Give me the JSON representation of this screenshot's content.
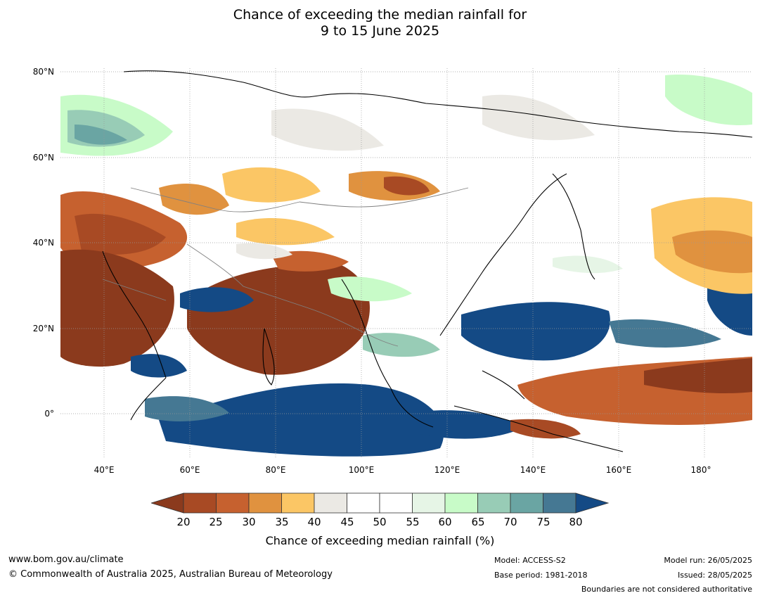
{
  "title_line1": "Chance of exceeding the median rainfall for",
  "title_line2": "9 to 15 June 2025",
  "map": {
    "lat_labels": [
      "80°N",
      "60°N",
      "40°N",
      "20°N",
      "0°"
    ],
    "lon_labels": [
      "40°E",
      "60°E",
      "80°E",
      "100°E",
      "120°E",
      "140°E",
      "160°E",
      "180°"
    ],
    "extent": {
      "lon": [
        30,
        191
      ],
      "lat": [
        -10,
        81
      ]
    }
  },
  "colorbar": {
    "ticks": [
      "20",
      "25",
      "30",
      "35",
      "40",
      "45",
      "50",
      "55",
      "60",
      "65",
      "70",
      "75",
      "80"
    ],
    "title": "Chance of exceeding median rainfall (%)",
    "below_color": "#8b3a1d",
    "above_color": "#144a85",
    "colors": [
      "#a84a24",
      "#c6612f",
      "#e0923f",
      "#fbc665",
      "#ebe9e4",
      "#ffffff",
      "#ffffff",
      "#e6f5e6",
      "#c8fbc8",
      "#98ccb6",
      "#6aa5a3",
      "#457893"
    ]
  },
  "footer": {
    "website": "www.bom.gov.au/climate",
    "copyright": "© Commonwealth of Australia 2025, Australian Bureau of Meteorology",
    "model": "Model: ACCESS-S2",
    "base_period": "Base period: 1981-2018",
    "model_run": "Model run: 26/05/2025",
    "issued": "Issued: 28/05/2025",
    "boundaries_note": "Boundaries are not considered authoritative"
  }
}
